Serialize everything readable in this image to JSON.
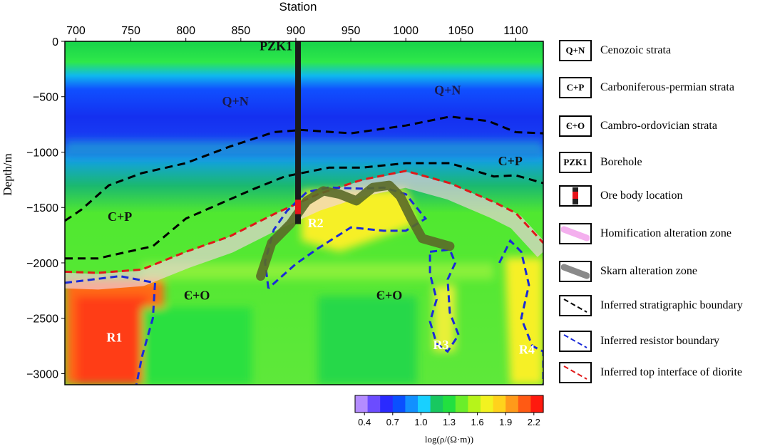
{
  "chart_data": {
    "type": "heatmap",
    "title": "Station",
    "ylabel": "Depth/m",
    "xlim": [
      690,
      1125
    ],
    "ylim": [
      -3100,
      0
    ],
    "x_ticks": [
      "700",
      "750",
      "800",
      "850",
      "900",
      "950",
      "1000",
      "1050",
      "1100"
    ],
    "y_ticks": [
      "0",
      "−500",
      "−1000",
      "−1500",
      "−2000",
      "−2500",
      "−3000"
    ],
    "colorbar": {
      "label": "log(ρ/(Ω·m))",
      "range": [
        0.3,
        2.3
      ],
      "ticks": [
        "0.4",
        "0.7",
        "1.0",
        "1.3",
        "1.6",
        "1.9",
        "2.2"
      ],
      "colors": [
        "#b48cff",
        "#6c4cff",
        "#2a2aff",
        "#0a50ff",
        "#1290ff",
        "#18d0ff",
        "#18c860",
        "#22e040",
        "#6aee2a",
        "#b6f41a",
        "#f2f220",
        "#ffd21c",
        "#ff9a1a",
        "#ff5a14",
        "#ff1a0e"
      ]
    },
    "annotations": [
      {
        "text": "PZK1",
        "x": 882,
        "y": -80,
        "color": "#111111"
      },
      {
        "text": "Q+N",
        "x": 845,
        "y": -580,
        "color": "#1a1a4a"
      },
      {
        "text": "Q+N",
        "x": 1038,
        "y": -480,
        "color": "#1a1a4a"
      },
      {
        "text": "C+P",
        "x": 740,
        "y": -1620,
        "color": "#111111"
      },
      {
        "text": "C+P",
        "x": 1095,
        "y": -1120,
        "color": "#111111"
      },
      {
        "text": "R2",
        "x": 918,
        "y": -1680,
        "color": "#ffffff"
      },
      {
        "text": "Є+O",
        "x": 810,
        "y": -2330,
        "color": "#111111"
      },
      {
        "text": "Є+O",
        "x": 985,
        "y": -2330,
        "color": "#111111"
      },
      {
        "text": "R1",
        "x": 735,
        "y": -2710,
        "color": "#ffffff"
      },
      {
        "text": "R3",
        "x": 1032,
        "y": -2780,
        "color": "#ffffff"
      },
      {
        "text": "R4",
        "x": 1110,
        "y": -2820,
        "color": "#ffffff"
      }
    ],
    "borehole": {
      "name": "PZK1",
      "x": 902,
      "top": 0,
      "bottom": -1650,
      "ore_top": -1430,
      "ore_bottom": -1560
    },
    "stratigraphic_boundaries": [
      {
        "name": "Q+N / C+P",
        "points": [
          [
            690,
            -1620
          ],
          [
            705,
            -1520
          ],
          [
            730,
            -1300
          ],
          [
            760,
            -1190
          ],
          [
            800,
            -1100
          ],
          [
            840,
            -950
          ],
          [
            880,
            -820
          ],
          [
            905,
            -800
          ],
          [
            950,
            -830
          ],
          [
            1000,
            -760
          ],
          [
            1040,
            -680
          ],
          [
            1075,
            -720
          ],
          [
            1100,
            -820
          ],
          [
            1125,
            -830
          ]
        ]
      },
      {
        "name": "C+P / Є+O",
        "points": [
          [
            690,
            -1960
          ],
          [
            720,
            -1960
          ],
          [
            770,
            -1850
          ],
          [
            800,
            -1600
          ],
          [
            830,
            -1470
          ],
          [
            860,
            -1340
          ],
          [
            890,
            -1220
          ],
          [
            930,
            -1140
          ],
          [
            960,
            -1140
          ],
          [
            1000,
            -1100
          ],
          [
            1040,
            -1100
          ],
          [
            1080,
            -1220
          ],
          [
            1100,
            -1210
          ],
          [
            1125,
            -1280
          ]
        ]
      }
    ],
    "diorite_top": {
      "points": [
        [
          690,
          -2080
        ],
        [
          720,
          -2090
        ],
        [
          760,
          -2060
        ],
        [
          800,
          -1900
        ],
        [
          840,
          -1760
        ],
        [
          880,
          -1560
        ],
        [
          920,
          -1380
        ],
        [
          960,
          -1250
        ],
        [
          1000,
          -1170
        ],
        [
          1040,
          -1280
        ],
        [
          1080,
          -1450
        ],
        [
          1100,
          -1550
        ],
        [
          1125,
          -1820
        ]
      ]
    },
    "resistor_boundaries": [
      {
        "name": "R1",
        "points": [
          [
            690,
            -2180
          ],
          [
            740,
            -2120
          ],
          [
            772,
            -2180
          ],
          [
            770,
            -2500
          ],
          [
            760,
            -2850
          ],
          [
            755,
            -3100
          ]
        ]
      },
      {
        "name": "R2",
        "points": [
          [
            875,
            -2230
          ],
          [
            872,
            -1990
          ],
          [
            880,
            -1700
          ],
          [
            892,
            -1530
          ],
          [
            910,
            -1360
          ],
          [
            930,
            -1320
          ],
          [
            960,
            -1330
          ],
          [
            980,
            -1320
          ],
          [
            1000,
            -1380
          ],
          [
            1018,
            -1600
          ],
          [
            1000,
            -1710
          ],
          [
            980,
            -1710
          ],
          [
            950,
            -1680
          ],
          [
            920,
            -1870
          ],
          [
            900,
            -2010
          ],
          [
            875,
            -2230
          ]
        ]
      },
      {
        "name": "R3",
        "points": [
          [
            1022,
            -1900
          ],
          [
            1040,
            -1880
          ],
          [
            1045,
            -2000
          ],
          [
            1038,
            -2150
          ],
          [
            1040,
            -2450
          ],
          [
            1048,
            -2650
          ],
          [
            1038,
            -2800
          ],
          [
            1028,
            -2730
          ],
          [
            1022,
            -2530
          ],
          [
            1028,
            -2330
          ],
          [
            1022,
            -2100
          ],
          [
            1022,
            -1900
          ]
        ]
      },
      {
        "name": "R4",
        "points": [
          [
            1085,
            -2000
          ],
          [
            1095,
            -1800
          ],
          [
            1105,
            -1900
          ],
          [
            1112,
            -2200
          ],
          [
            1105,
            -2500
          ],
          [
            1115,
            -2750
          ],
          [
            1125,
            -2800
          ],
          [
            1125,
            -3100
          ]
        ]
      }
    ],
    "skarn_zone": {
      "points": [
        [
          868,
          -2120
        ],
        [
          878,
          -1820
        ],
        [
          895,
          -1650
        ],
        [
          910,
          -1440
        ],
        [
          925,
          -1350
        ],
        [
          940,
          -1380
        ],
        [
          955,
          -1440
        ],
        [
          970,
          -1320
        ],
        [
          985,
          -1300
        ],
        [
          995,
          -1400
        ],
        [
          1005,
          -1600
        ],
        [
          1015,
          -1780
        ],
        [
          1040,
          -1850
        ]
      ]
    }
  },
  "legend": {
    "items": [
      {
        "key": "Q+N",
        "label": "Cenozoic strata"
      },
      {
        "key": "C+P",
        "label": "Carboniferous-permian strata"
      },
      {
        "key": "Є+O",
        "label": "Cambro-ordovician strata"
      },
      {
        "key": "PZK1",
        "label": "Borehole"
      },
      {
        "key": "",
        "label": "Ore body location"
      },
      {
        "key": "",
        "label": "Homification alteration zone"
      },
      {
        "key": "",
        "label": "Skarn alteration zone"
      },
      {
        "key": "",
        "label": "Inferred stratigraphic boundary"
      },
      {
        "key": "",
        "label": "Inferred resistor boundary"
      },
      {
        "key": "",
        "label": "Inferred top interface of diorite"
      }
    ]
  }
}
